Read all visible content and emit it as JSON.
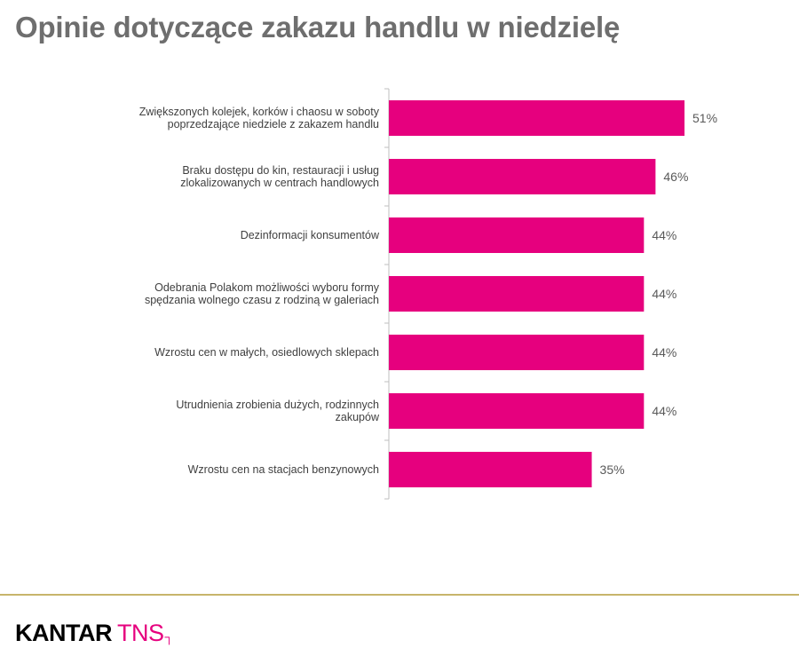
{
  "page": {
    "title": "Opinie dotyczące zakazu handlu w niedzielę"
  },
  "footer": {
    "logo_brand": "KANTAR",
    "logo_sub": "TNS",
    "logo_mark": "┐",
    "accent_line_color": "#c7b56b"
  },
  "chart_data": {
    "type": "bar",
    "orientation": "horizontal",
    "title": "Opinie dotyczące zakazu handlu w niedzielę",
    "xlabel": "",
    "ylabel": "",
    "xlim": [
      0,
      60
    ],
    "grid": false,
    "legend": "none",
    "bar_color": "#e6007e",
    "value_format": "{v}%",
    "categories": [
      [
        "Zwiększonych kolejek, korków i chaosu w soboty",
        "poprzedzające niedziele z zakazem handlu"
      ],
      [
        "Braku dostępu do kin, restauracji i usług",
        "zlokalizowanych w centrach handlowych"
      ],
      [
        "Dezinformacji konsumentów"
      ],
      [
        "Odebrania Polakom możliwości wyboru formy",
        "spędzania wolnego czasu z rodziną w galeriach"
      ],
      [
        "Wzrostu cen w małych, osiedlowych sklepach"
      ],
      [
        "Utrudnienia zrobienia dużych, rodzinnych",
        "zakupów"
      ],
      [
        "Wzrostu cen na stacjach benzynowych"
      ]
    ],
    "values": [
      51,
      46,
      44,
      44,
      44,
      44,
      35
    ]
  }
}
